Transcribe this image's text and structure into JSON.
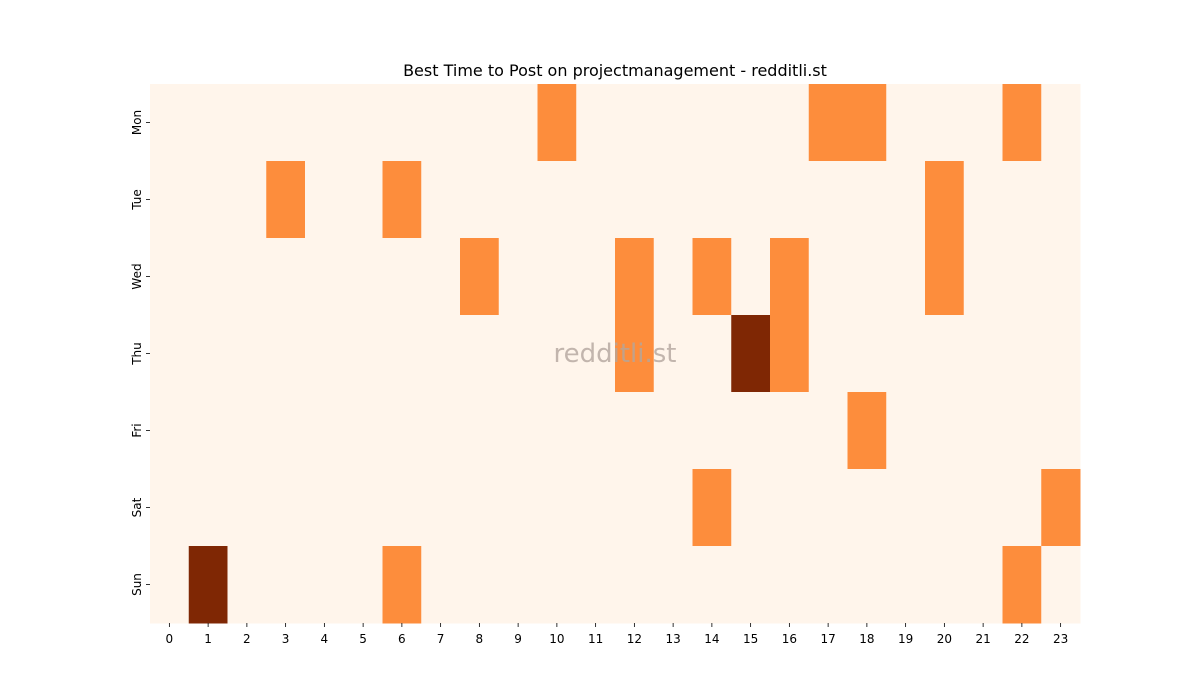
{
  "chart_data": {
    "type": "heatmap",
    "title": "Best Time to Post on projectmanagement - redditli.st",
    "xlabel": "",
    "ylabel": "",
    "x_categories": [
      "0",
      "1",
      "2",
      "3",
      "4",
      "5",
      "6",
      "7",
      "8",
      "9",
      "10",
      "11",
      "12",
      "13",
      "14",
      "15",
      "16",
      "17",
      "18",
      "19",
      "20",
      "21",
      "22",
      "23"
    ],
    "y_categories": [
      "Mon",
      "Tue",
      "Wed",
      "Thu",
      "Fri",
      "Sat",
      "Sun"
    ],
    "values": [
      [
        0,
        0,
        0,
        0,
        0,
        0,
        0,
        0,
        0,
        0,
        1,
        0,
        0,
        0,
        0,
        0,
        0,
        1,
        1,
        0,
        0,
        0,
        1,
        0
      ],
      [
        0,
        0,
        0,
        1,
        0,
        0,
        1,
        0,
        0,
        0,
        0,
        0,
        0,
        0,
        0,
        0,
        0,
        0,
        0,
        0,
        1,
        0,
        0,
        0
      ],
      [
        0,
        0,
        0,
        0,
        0,
        0,
        0,
        0,
        1,
        0,
        0,
        0,
        1,
        0,
        1,
        0,
        1,
        0,
        0,
        0,
        1,
        0,
        0,
        0
      ],
      [
        0,
        0,
        0,
        0,
        0,
        0,
        0,
        0,
        0,
        0,
        0,
        0,
        1,
        0,
        0,
        2,
        1,
        0,
        0,
        0,
        0,
        0,
        0,
        0
      ],
      [
        0,
        0,
        0,
        0,
        0,
        0,
        0,
        0,
        0,
        0,
        0,
        0,
        0,
        0,
        0,
        0,
        0,
        0,
        1,
        0,
        0,
        0,
        0,
        0
      ],
      [
        0,
        0,
        0,
        0,
        0,
        0,
        0,
        0,
        0,
        0,
        0,
        0,
        0,
        0,
        1,
        0,
        0,
        0,
        0,
        0,
        0,
        0,
        0,
        1
      ],
      [
        0,
        2,
        0,
        0,
        0,
        0,
        1,
        0,
        0,
        0,
        0,
        0,
        0,
        0,
        0,
        0,
        0,
        0,
        0,
        0,
        0,
        0,
        1,
        0
      ]
    ],
    "colors": {
      "0": "#fff5eb",
      "1": "#fd8d3c",
      "2": "#7f2704"
    },
    "colorbar": false,
    "grid": false,
    "watermark": "redditli.st"
  }
}
